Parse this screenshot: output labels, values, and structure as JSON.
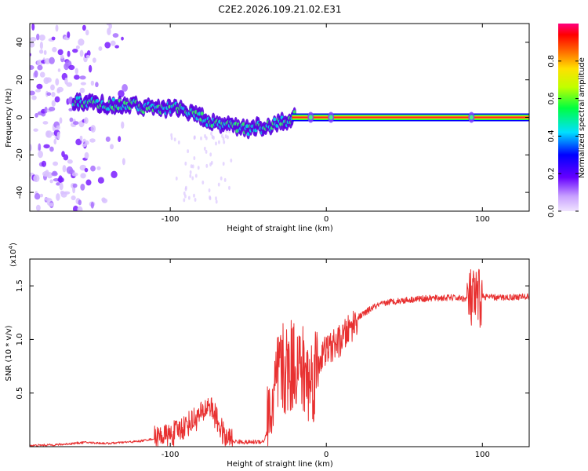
{
  "title": "C2E2.2026.109.21.02.E31",
  "chart_data": [
    {
      "type": "heatmap",
      "name": "spectrogram",
      "xlabel": "Height of straight line (km)",
      "ylabel": "Frequency (Hz)",
      "xlim": [
        -190,
        130
      ],
      "ylim": [
        -50,
        50
      ],
      "xticks": [
        -100,
        0,
        100
      ],
      "yticks": [
        -40,
        -20,
        0,
        20,
        40
      ],
      "ridge": {
        "x": [
          -160,
          -140,
          -120,
          -100,
          -90,
          -80,
          -70,
          -60,
          -50,
          -40,
          -30,
          -25,
          -20,
          -10,
          0,
          50,
          90,
          95,
          100,
          130
        ],
        "frequency": [
          8,
          7,
          6,
          5,
          3,
          0,
          -3,
          -5,
          -6,
          -5,
          -3,
          -1,
          0,
          0,
          0,
          0,
          0,
          0,
          0,
          0
        ]
      },
      "colorbar": {
        "label": "Normalized spectral amplitude",
        "range": [
          0,
          1
        ],
        "ticks": [
          "0.0",
          "0.2",
          "0.4",
          "0.6",
          "0.8"
        ],
        "tick_values": [
          0,
          0.2,
          0.4,
          0.6,
          0.8
        ]
      }
    },
    {
      "type": "line",
      "name": "snr",
      "xlabel": "Height of straight line (km)",
      "ylabel": "SNR (10 * v/v)",
      "scale_note": "(x10^4)",
      "scale_base": "(x10",
      "scale_exp": "4",
      "scale_close": ")",
      "xlim": [
        -190,
        130
      ],
      "ylim": [
        0,
        1.75
      ],
      "xticks": [
        -100,
        0,
        100
      ],
      "yticks": [
        "0.5",
        "1.0",
        "1.5"
      ],
      "ytick_values": [
        0.5,
        1.0,
        1.5
      ],
      "color": "#e83030",
      "series": [
        {
          "name": "SNR",
          "x": [
            -190,
            -170,
            -155,
            -140,
            -120,
            -100,
            -90,
            -80,
            -75,
            -70,
            -65,
            -60,
            -50,
            -40,
            -35,
            -30,
            -25,
            -20,
            -15,
            -10,
            -5,
            0,
            10,
            20,
            30,
            40,
            60,
            80,
            90,
            95,
            100,
            110,
            130
          ],
          "y": [
            0.01,
            0.02,
            0.04,
            0.03,
            0.05,
            0.1,
            0.2,
            0.3,
            0.4,
            0.25,
            0.08,
            0.05,
            0.04,
            0.05,
            0.3,
            0.7,
            0.7,
            0.8,
            0.7,
            0.6,
            0.8,
            0.9,
            1.0,
            1.2,
            1.3,
            1.35,
            1.38,
            1.39,
            1.38,
            1.35,
            1.4,
            1.39,
            1.4
          ]
        }
      ]
    }
  ]
}
